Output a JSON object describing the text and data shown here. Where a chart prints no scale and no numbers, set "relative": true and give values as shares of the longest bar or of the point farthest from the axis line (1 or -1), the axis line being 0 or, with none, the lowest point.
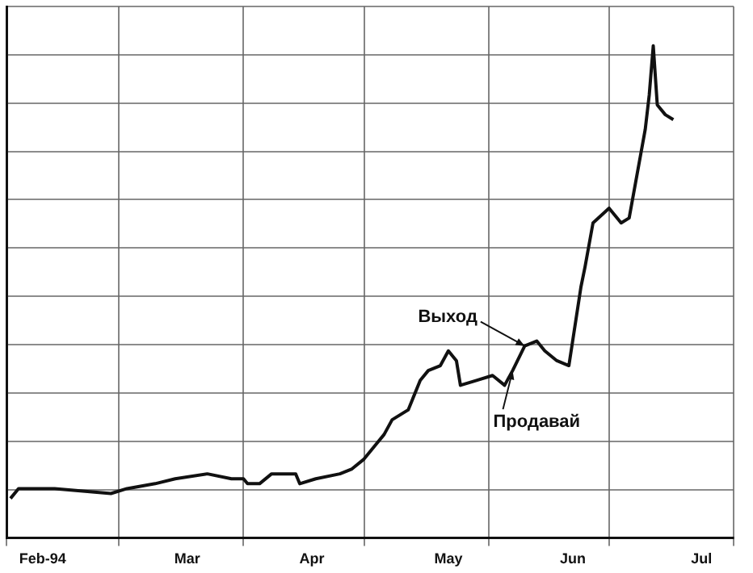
{
  "chart_data": {
    "type": "line",
    "relative": true,
    "grid": true,
    "legend": false,
    "marker": "none",
    "line_style": "solid",
    "xlim": [
      "1994-02-01",
      "1994-08-01"
    ],
    "xticks": [
      {
        "value": "1994-02-01",
        "label": null
      },
      {
        "value": "1994-02-10",
        "label": "Feb-94"
      },
      {
        "value": "1994-03-01",
        "label": null
      },
      {
        "value": "1994-03-18",
        "label": "Mar"
      },
      {
        "value": "1994-04-01",
        "label": null
      },
      {
        "value": "1994-04-18",
        "label": "Apr"
      },
      {
        "value": "1994-05-01",
        "label": null
      },
      {
        "value": "1994-05-22",
        "label": "May"
      },
      {
        "value": "1994-06-01",
        "label": null
      },
      {
        "value": "1994-06-22",
        "label": "Jun"
      },
      {
        "value": "1994-07-01",
        "label": null
      },
      {
        "value": "1994-07-24",
        "label": "Jul"
      },
      {
        "value": "1994-08-01",
        "label": null
      }
    ],
    "x": [
      "1994-02-02",
      "1994-02-04",
      "1994-02-13",
      "1994-02-27",
      "1994-03-03",
      "1994-03-10",
      "1994-03-15",
      "1994-03-23",
      "1994-03-29",
      "1994-04-01",
      "1994-04-02",
      "1994-04-05",
      "1994-04-08",
      "1994-04-14",
      "1994-04-15",
      "1994-04-19",
      "1994-04-25",
      "1994-04-28",
      "1994-05-01",
      "1994-05-04",
      "1994-05-06",
      "1994-05-08",
      "1994-05-12",
      "1994-05-15",
      "1994-05-17",
      "1994-05-20",
      "1994-05-22",
      "1994-05-24",
      "1994-05-25",
      "1994-05-29",
      "1994-06-02",
      "1994-06-05",
      "1994-06-07",
      "1994-06-10",
      "1994-06-13",
      "1994-06-15",
      "1994-06-18",
      "1994-06-21",
      "1994-06-24",
      "1994-06-25",
      "1994-06-27",
      "1994-07-01",
      "1994-07-04",
      "1994-07-06",
      "1994-07-10",
      "1994-07-11",
      "1994-07-12",
      "1994-07-13",
      "1994-07-15",
      "1994-07-17"
    ],
    "series": [
      {
        "color": "#111111",
        "values": [
          0.08,
          0.1,
          0.1,
          0.09,
          0.1,
          0.11,
          0.12,
          0.13,
          0.12,
          0.12,
          0.11,
          0.11,
          0.13,
          0.13,
          0.11,
          0.12,
          0.13,
          0.14,
          0.16,
          0.19,
          0.21,
          0.24,
          0.26,
          0.32,
          0.34,
          0.35,
          0.38,
          0.36,
          0.31,
          0.32,
          0.33,
          0.31,
          0.34,
          0.39,
          0.4,
          0.38,
          0.36,
          0.35,
          0.51,
          0.55,
          0.64,
          0.67,
          0.64,
          0.65,
          0.83,
          0.9,
          1,
          0.88,
          0.86,
          0.85
        ]
      }
    ],
    "annotations": [
      {
        "text": "Выход",
        "x": "1994-06-10",
        "y": 0.39
      },
      {
        "text": "Продавай",
        "x": "1994-06-07",
        "y": 0.34
      }
    ]
  }
}
